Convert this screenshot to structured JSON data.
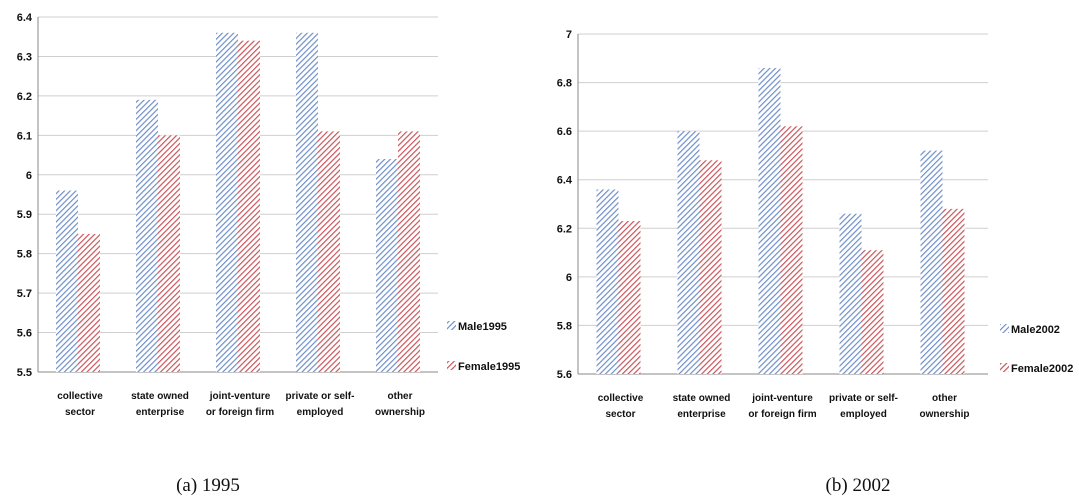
{
  "chart_data": [
    {
      "type": "bar",
      "caption": "(a) 1995",
      "categories": [
        [
          "collective",
          "sector"
        ],
        [
          "state owned",
          "enterprise"
        ],
        [
          "joint-venture",
          "or foreign firm"
        ],
        [
          "private or self-",
          "employed"
        ],
        [
          "other",
          "ownership"
        ]
      ],
      "ylim": [
        5.5,
        6.4
      ],
      "yticks": [
        "5.5",
        "5.6",
        "5.7",
        "5.8",
        "5.9",
        "6",
        "6.1",
        "6.2",
        "6.3",
        "6.4"
      ],
      "grid": true,
      "legend_position": "right",
      "series": [
        {
          "name": "Male1995",
          "color": "#6f8fc8",
          "values": [
            5.96,
            6.19,
            6.36,
            6.36,
            6.04
          ]
        },
        {
          "name": "Female1995",
          "color": "#c8555a",
          "values": [
            5.85,
            6.1,
            6.34,
            6.11,
            6.11
          ]
        }
      ]
    },
    {
      "type": "bar",
      "caption": "(b) 2002",
      "categories": [
        [
          "collective",
          "sector"
        ],
        [
          "state owned",
          "enterprise"
        ],
        [
          "joint-venture",
          "or foreign firm"
        ],
        [
          "private or self-",
          "employed"
        ],
        [
          "other",
          "ownership"
        ]
      ],
      "ylim": [
        5.6,
        7.0
      ],
      "yticks": [
        "5.6",
        "5.8",
        "6",
        "6.2",
        "6.4",
        "6.6",
        "6.8",
        "7"
      ],
      "grid": true,
      "legend_position": "right",
      "series": [
        {
          "name": "Male2002",
          "color": "#6f8fc8",
          "values": [
            6.36,
            6.6,
            6.86,
            6.26,
            6.52
          ]
        },
        {
          "name": "Female2002",
          "color": "#c8555a",
          "values": [
            6.23,
            6.48,
            6.62,
            6.11,
            6.28
          ]
        }
      ]
    }
  ]
}
